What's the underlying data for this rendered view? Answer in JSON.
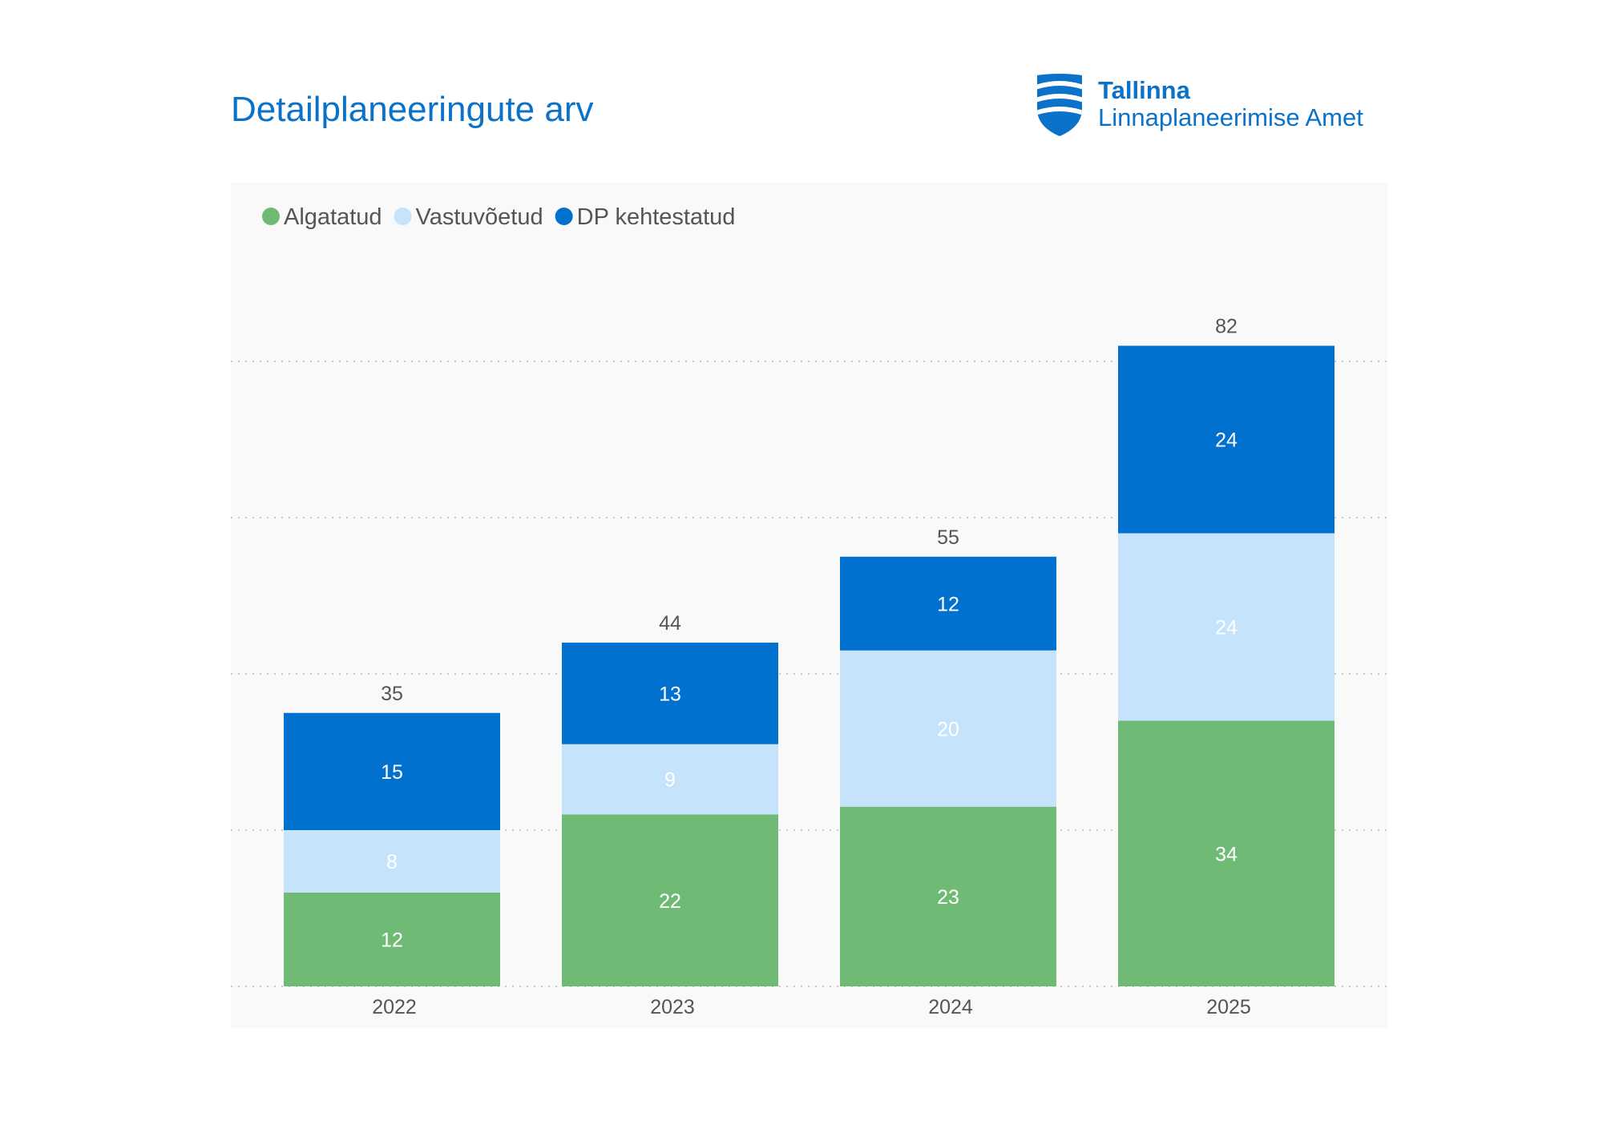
{
  "header": {
    "title": "Detailplaneeringute arv"
  },
  "logo": {
    "line1": "Tallinna",
    "line2": "Linnaplaneerimise Amet",
    "icon": "tallinn-shield-icon",
    "color": "#0a72c8"
  },
  "chart_data": {
    "type": "bar",
    "stacked": true,
    "categories": [
      "2022",
      "2023",
      "2024",
      "2025"
    ],
    "series": [
      {
        "name": "Algatatud",
        "color": "#6fbb76",
        "values": [
          12,
          22,
          23,
          34
        ]
      },
      {
        "name": "Vastuvõetud",
        "color": "#c5e3fa",
        "values": [
          8,
          9,
          20,
          24
        ]
      },
      {
        "name": "DP kehtestatud",
        "color": "#0071ce",
        "values": [
          15,
          13,
          12,
          24
        ]
      }
    ],
    "totals": [
      35,
      44,
      55,
      82
    ],
    "ylim": [
      0,
      80
    ],
    "y_gridlines": [
      0,
      20,
      40,
      60,
      80
    ],
    "grid": true,
    "grid_style": "dotted",
    "y_tick_labels_shown": false,
    "legend_position": "top-left",
    "title": "",
    "xlabel": "",
    "ylabel": ""
  }
}
